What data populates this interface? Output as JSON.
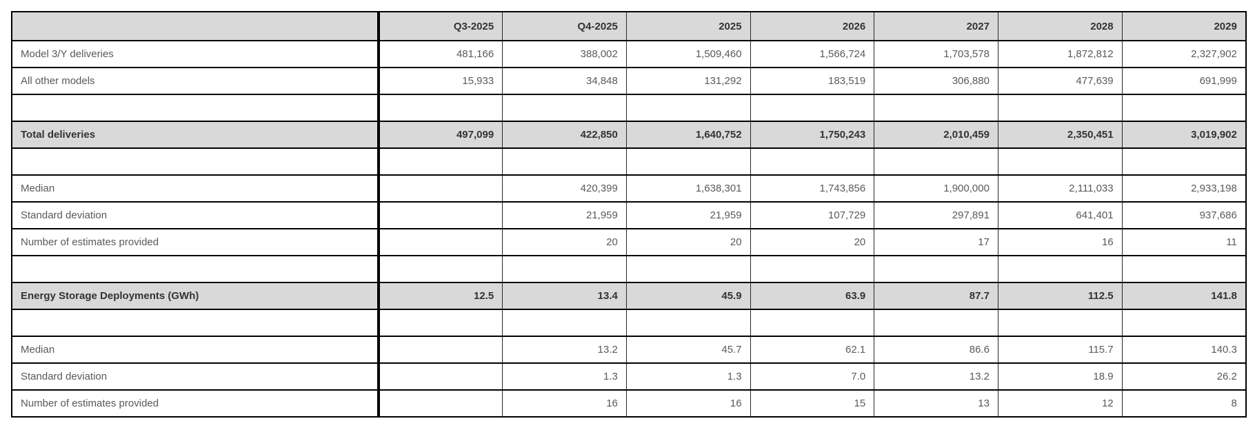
{
  "table": {
    "columns": [
      "",
      "Q3-2025",
      "Q4-2025",
      "2025",
      "2026",
      "2027",
      "2028",
      "2029"
    ],
    "rows": [
      {
        "type": "data",
        "label": "Model 3/Y deliveries",
        "values": [
          "481,166",
          "388,002",
          "1,509,460",
          "1,566,724",
          "1,703,578",
          "1,872,812",
          "2,327,902"
        ]
      },
      {
        "type": "data",
        "label": "All other models",
        "values": [
          "15,933",
          "34,848",
          "131,292",
          "183,519",
          "306,880",
          "477,639",
          "691,999"
        ]
      },
      {
        "type": "blank",
        "label": "",
        "values": [
          "",
          "",
          "",
          "",
          "",
          "",
          ""
        ]
      },
      {
        "type": "total",
        "label": "Total deliveries",
        "values": [
          "497,099",
          "422,850",
          "1,640,752",
          "1,750,243",
          "2,010,459",
          "2,350,451",
          "3,019,902"
        ]
      },
      {
        "type": "blank",
        "label": "",
        "values": [
          "",
          "",
          "",
          "",
          "",
          "",
          ""
        ]
      },
      {
        "type": "data",
        "label": "Median",
        "values": [
          "",
          "420,399",
          "1,638,301",
          "1,743,856",
          "1,900,000",
          "2,111,033",
          "2,933,198"
        ]
      },
      {
        "type": "data",
        "label": "Standard deviation",
        "values": [
          "",
          "21,959",
          "21,959",
          "107,729",
          "297,891",
          "641,401",
          "937,686"
        ]
      },
      {
        "type": "data",
        "label": "Number of estimates provided",
        "values": [
          "",
          "20",
          "20",
          "20",
          "17",
          "16",
          "11"
        ]
      },
      {
        "type": "blank",
        "label": "",
        "values": [
          "",
          "",
          "",
          "",
          "",
          "",
          ""
        ]
      },
      {
        "type": "total",
        "label": "Energy Storage Deployments (GWh)",
        "values": [
          "12.5",
          "13.4",
          "45.9",
          "63.9",
          "87.7",
          "112.5",
          "141.8"
        ]
      },
      {
        "type": "blank",
        "label": "",
        "values": [
          "",
          "",
          "",
          "",
          "",
          "",
          ""
        ]
      },
      {
        "type": "data",
        "label": "Median",
        "values": [
          "",
          "13.2",
          "45.7",
          "62.1",
          "86.6",
          "115.7",
          "140.3"
        ]
      },
      {
        "type": "data",
        "label": "Standard deviation",
        "values": [
          "",
          "1.3",
          "1.3",
          "7.0",
          "13.2",
          "18.9",
          "26.2"
        ]
      },
      {
        "type": "data",
        "label": "Number of estimates provided",
        "values": [
          "",
          "16",
          "16",
          "15",
          "13",
          "12",
          "8"
        ]
      }
    ],
    "colors": {
      "band_background": "#d9d9d9",
      "grid_line": "#000000",
      "text_regular": "#595959",
      "text_bold": "#333333"
    }
  }
}
